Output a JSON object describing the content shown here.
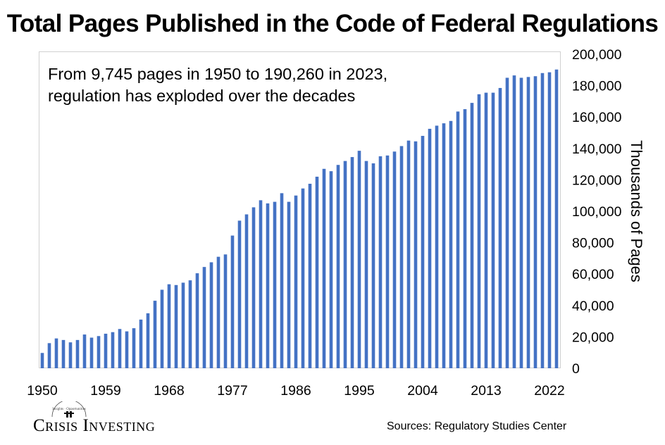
{
  "chart_data": {
    "type": "bar",
    "title": "Total Pages Published in the Code of Federal Regulations",
    "annotation_line1": "From 9,745 pages in 1950 to 190,260 in 2023,",
    "annotation_line2": "regulation has exploded over the decades",
    "ylabel": "Thousands of Pages",
    "ylim": [
      0,
      200000
    ],
    "y_ticks": [
      "0",
      "20,000",
      "40,000",
      "60,000",
      "80,000",
      "100,000",
      "120,000",
      "140,000",
      "160,000",
      "180,000",
      "200,000"
    ],
    "x_tick_labels": [
      "1950",
      "1959",
      "1968",
      "1977",
      "1986",
      "1995",
      "2004",
      "2013",
      "2022"
    ],
    "x_start_year": 1950,
    "x_end_year": 2023,
    "bar_color": "#4472C4",
    "grid": false,
    "values": [
      9745,
      16000,
      19000,
      18000,
      16500,
      18000,
      21500,
      19500,
      20500,
      22000,
      23000,
      25000,
      23500,
      25500,
      31000,
      35000,
      43000,
      50000,
      53500,
      53000,
      54500,
      56000,
      60500,
      64500,
      67500,
      71000,
      72500,
      84500,
      94000,
      98000,
      102500,
      107000,
      105000,
      106000,
      111500,
      106000,
      110000,
      114500,
      117500,
      122000,
      127000,
      125500,
      129500,
      132000,
      134500,
      138500,
      132000,
      130500,
      135000,
      135500,
      138000,
      141500,
      145000,
      144500,
      148000,
      152500,
      154500,
      156000,
      157500,
      163500,
      165000,
      169000,
      174500,
      175500,
      175500,
      178500,
      185000,
      186500,
      185000,
      185500,
      186000,
      188000,
      188500,
      190260
    ]
  },
  "footer": {
    "brand_name": "Crisis Investing",
    "brand_mark_text": "Insights · Opportunities",
    "sources": "Sources: Regulatory Studies Center"
  }
}
